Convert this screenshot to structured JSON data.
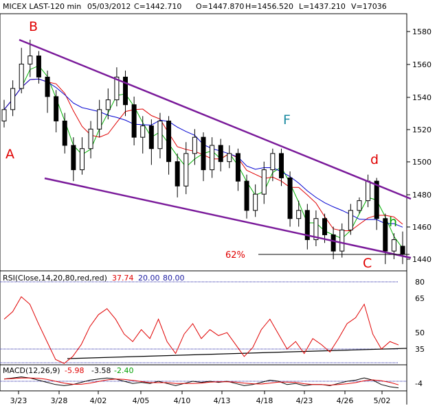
{
  "header": {
    "symbol": "MICEX LAST-120 min",
    "date": "05/03/2012",
    "close": "C=1442.710",
    "open": "O=1447.870",
    "high": "H=1456.520",
    "low": "L=1437.210",
    "volume": "V=17036"
  },
  "price_axis": [
    "1580",
    "1560",
    "1540",
    "1520",
    "1500",
    "1480",
    "1460",
    "1440"
  ],
  "x_dates": [
    "3/23",
    "3/28",
    "4/02",
    "4/05",
    "4/10",
    "4/13",
    "4/18",
    "4/23",
    "4/26",
    "5/02"
  ],
  "wave_labels": {
    "A": "A",
    "B": "B",
    "F": "F",
    "d": "d",
    "h": "h",
    "C": "C"
  },
  "fib_label": "62%",
  "rsi": {
    "label": "RSI(Close,14,20,80,red,red)",
    "value": "37.74",
    "low": "20.00",
    "high": "80.00",
    "axis": [
      "80",
      "65",
      "50",
      "35"
    ]
  },
  "macd": {
    "label": "MACD(12,26,9)",
    "v1": "-5.98",
    "v2": "-3.58",
    "v3": "-2.40",
    "axis": [
      "-4"
    ]
  },
  "colors": {
    "up": "#000000",
    "down": "#000000",
    "ma_fast": "#00b000",
    "ma_mid": "#e00000",
    "ma_slow": "#0000d0",
    "trend": "#7a1a9a",
    "rsi": "#e00000",
    "grid": "#1a1aa0"
  },
  "chart_data": {
    "type": "candlestick",
    "title": "MICEX LAST-120 min",
    "y_range": [
      1430,
      1590
    ],
    "points": [
      {
        "d": "3/23",
        "o": 1525,
        "c": 1532,
        "h": 1538,
        "l": 1521
      },
      {
        "d": "",
        "o": 1532,
        "c": 1545,
        "h": 1550,
        "l": 1528
      },
      {
        "d": "",
        "o": 1545,
        "c": 1560,
        "h": 1570,
        "l": 1542
      },
      {
        "d": "",
        "o": 1560,
        "c": 1565,
        "h": 1575,
        "l": 1552
      },
      {
        "d": "",
        "o": 1565,
        "c": 1552,
        "h": 1568,
        "l": 1548
      },
      {
        "d": "",
        "o": 1552,
        "c": 1540,
        "h": 1556,
        "l": 1530
      },
      {
        "d": "",
        "o": 1540,
        "c": 1525,
        "h": 1544,
        "l": 1518
      },
      {
        "d": "",
        "o": 1525,
        "c": 1510,
        "h": 1530,
        "l": 1505
      },
      {
        "d": "3/28",
        "o": 1510,
        "c": 1495,
        "h": 1515,
        "l": 1488
      },
      {
        "d": "",
        "o": 1495,
        "c": 1508,
        "h": 1515,
        "l": 1492
      },
      {
        "d": "",
        "o": 1508,
        "c": 1520,
        "h": 1525,
        "l": 1502
      },
      {
        "d": "",
        "o": 1520,
        "c": 1532,
        "h": 1538,
        "l": 1515
      },
      {
        "d": "",
        "o": 1532,
        "c": 1538,
        "h": 1545,
        "l": 1526
      },
      {
        "d": "4/02",
        "o": 1538,
        "c": 1552,
        "h": 1558,
        "l": 1534
      },
      {
        "d": "",
        "o": 1552,
        "c": 1535,
        "h": 1556,
        "l": 1528
      },
      {
        "d": "",
        "o": 1535,
        "c": 1515,
        "h": 1540,
        "l": 1510
      },
      {
        "d": "",
        "o": 1515,
        "c": 1522,
        "h": 1528,
        "l": 1505
      },
      {
        "d": "",
        "o": 1522,
        "c": 1508,
        "h": 1526,
        "l": 1498
      },
      {
        "d": "4/05",
        "o": 1508,
        "c": 1525,
        "h": 1530,
        "l": 1502
      },
      {
        "d": "",
        "o": 1525,
        "c": 1500,
        "h": 1528,
        "l": 1492
      },
      {
        "d": "",
        "o": 1500,
        "c": 1485,
        "h": 1505,
        "l": 1478
      },
      {
        "d": "",
        "o": 1485,
        "c": 1505,
        "h": 1512,
        "l": 1480
      },
      {
        "d": "4/10",
        "o": 1505,
        "c": 1515,
        "h": 1520,
        "l": 1498
      },
      {
        "d": "",
        "o": 1515,
        "c": 1495,
        "h": 1518,
        "l": 1488
      },
      {
        "d": "",
        "o": 1495,
        "c": 1510,
        "h": 1515,
        "l": 1490
      },
      {
        "d": "",
        "o": 1510,
        "c": 1500,
        "h": 1514,
        "l": 1494
      },
      {
        "d": "4/13",
        "o": 1500,
        "c": 1505,
        "h": 1510,
        "l": 1496
      },
      {
        "d": "",
        "o": 1505,
        "c": 1488,
        "h": 1508,
        "l": 1482
      },
      {
        "d": "",
        "o": 1488,
        "c": 1470,
        "h": 1492,
        "l": 1465
      },
      {
        "d": "",
        "o": 1470,
        "c": 1480,
        "h": 1486,
        "l": 1466
      },
      {
        "d": "4/18",
        "o": 1480,
        "c": 1495,
        "h": 1500,
        "l": 1474
      },
      {
        "d": "",
        "o": 1495,
        "c": 1505,
        "h": 1508,
        "l": 1488
      },
      {
        "d": "",
        "o": 1505,
        "c": 1490,
        "h": 1508,
        "l": 1485
      },
      {
        "d": "",
        "o": 1490,
        "c": 1465,
        "h": 1494,
        "l": 1460
      },
      {
        "d": "4/23",
        "o": 1465,
        "c": 1470,
        "h": 1476,
        "l": 1460
      },
      {
        "d": "",
        "o": 1470,
        "c": 1452,
        "h": 1474,
        "l": 1446
      },
      {
        "d": "",
        "o": 1452,
        "c": 1465,
        "h": 1470,
        "l": 1448
      },
      {
        "d": "",
        "o": 1465,
        "c": 1455,
        "h": 1468,
        "l": 1450
      },
      {
        "d": "4/26",
        "o": 1455,
        "c": 1445,
        "h": 1460,
        "l": 1440
      },
      {
        "d": "",
        "o": 1445,
        "c": 1458,
        "h": 1462,
        "l": 1441
      },
      {
        "d": "",
        "o": 1458,
        "c": 1470,
        "h": 1474,
        "l": 1455
      },
      {
        "d": "",
        "o": 1470,
        "c": 1476,
        "h": 1478,
        "l": 1468
      },
      {
        "d": "",
        "o": 1476,
        "c": 1488,
        "h": 1492,
        "l": 1472
      },
      {
        "d": "5/02",
        "o": 1488,
        "c": 1465,
        "h": 1490,
        "l": 1458
      },
      {
        "d": "",
        "o": 1465,
        "c": 1445,
        "h": 1468,
        "l": 1437
      },
      {
        "d": "",
        "o": 1445,
        "c": 1452,
        "h": 1456,
        "l": 1440
      },
      {
        "d": "",
        "o": 1448,
        "c": 1443,
        "h": 1457,
        "l": 1437
      }
    ],
    "trendlines": [
      {
        "name": "upper",
        "from": [
          "B",
          1576
        ],
        "to": [
          "end",
          1478
        ]
      },
      {
        "name": "lower",
        "from": [
          "3/28",
          1491
        ],
        "to": [
          "end",
          1441
        ]
      },
      {
        "name": "fib-62",
        "value": 1443
      }
    ],
    "rsi_series": [
      55,
      60,
      70,
      65,
      52,
      40,
      28,
      22,
      30,
      38,
      50,
      58,
      62,
      55,
      45,
      40,
      48,
      42,
      55,
      40,
      32,
      45,
      52,
      42,
      48,
      44,
      46,
      38,
      30,
      36,
      48,
      55,
      45,
      35,
      40,
      32,
      42,
      38,
      33,
      42,
      52,
      56,
      65,
      45,
      35,
      40,
      37.74
    ],
    "rsi_ylim": [
      0,
      100
    ],
    "macd_series": [
      2,
      3,
      4,
      3,
      1,
      -1,
      -3,
      -4,
      -3,
      -1,
      1,
      2,
      3,
      2,
      0,
      -2,
      -1,
      -2,
      0,
      -2,
      -4,
      -2,
      0,
      -1,
      0,
      -1,
      0,
      -2,
      -4,
      -3,
      -1,
      1,
      0,
      -3,
      -2,
      -4,
      -3,
      -3,
      -4,
      -2,
      0,
      1,
      3,
      1,
      -3,
      -5,
      -5.98
    ]
  }
}
